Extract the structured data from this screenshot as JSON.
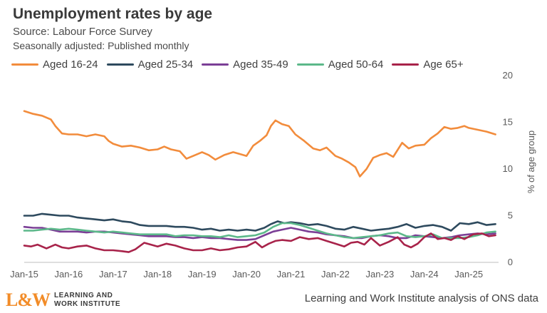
{
  "title": "Unemployment rates by age",
  "subtitle1": "Source: Labour Force Survey",
  "subtitle2": "Seasonally adjusted: Published monthly",
  "footer": {
    "logo_mark": "L&W",
    "logo_line1": "LEARNING AND",
    "logo_line2": "WORK INSTITUTE",
    "note": "Learning and Work Institute analysis of ONS data"
  },
  "chart_data": {
    "type": "line",
    "ylabel": "% of age group",
    "ylim": [
      0,
      20
    ],
    "yticks": [
      0,
      5,
      10,
      15,
      20
    ],
    "xlim": [
      2015.0,
      2025.67
    ],
    "xticks": [
      {
        "label": "Jan-15",
        "x": 2015.0
      },
      {
        "label": "Jan-16",
        "x": 2016.0
      },
      {
        "label": "Jan-17",
        "x": 2017.0
      },
      {
        "label": "Jan-18",
        "x": 2018.0
      },
      {
        "label": "Jan-19",
        "x": 2019.0
      },
      {
        "label": "Jan-20",
        "x": 2020.0
      },
      {
        "label": "Jan-21",
        "x": 2021.0
      },
      {
        "label": "Jan-22",
        "x": 2022.0
      },
      {
        "label": "Jan-23",
        "x": 2023.0
      },
      {
        "label": "Jan-24",
        "x": 2024.0
      },
      {
        "label": "Jan-25",
        "x": 2025.0
      }
    ],
    "legend_position": "top",
    "grid": false,
    "series": [
      {
        "name": "Aged 16-24",
        "color": "#f28c3c",
        "points": [
          [
            2015.0,
            16.2
          ],
          [
            2015.2,
            15.9
          ],
          [
            2015.4,
            15.7
          ],
          [
            2015.6,
            15.3
          ],
          [
            2015.7,
            14.6
          ],
          [
            2015.85,
            13.8
          ],
          [
            2016.0,
            13.7
          ],
          [
            2016.2,
            13.7
          ],
          [
            2016.4,
            13.5
          ],
          [
            2016.6,
            13.7
          ],
          [
            2016.8,
            13.5
          ],
          [
            2016.9,
            13.0
          ],
          [
            2017.0,
            12.7
          ],
          [
            2017.2,
            12.4
          ],
          [
            2017.4,
            12.5
          ],
          [
            2017.6,
            12.3
          ],
          [
            2017.8,
            12.0
          ],
          [
            2018.0,
            12.1
          ],
          [
            2018.15,
            12.4
          ],
          [
            2018.3,
            12.1
          ],
          [
            2018.5,
            11.9
          ],
          [
            2018.65,
            11.1
          ],
          [
            2018.8,
            11.4
          ],
          [
            2019.0,
            11.8
          ],
          [
            2019.15,
            11.5
          ],
          [
            2019.3,
            11.0
          ],
          [
            2019.5,
            11.5
          ],
          [
            2019.7,
            11.8
          ],
          [
            2019.85,
            11.6
          ],
          [
            2020.0,
            11.4
          ],
          [
            2020.15,
            12.5
          ],
          [
            2020.3,
            13.0
          ],
          [
            2020.45,
            13.6
          ],
          [
            2020.55,
            14.6
          ],
          [
            2020.65,
            15.2
          ],
          [
            2020.8,
            14.8
          ],
          [
            2020.95,
            14.6
          ],
          [
            2021.1,
            13.7
          ],
          [
            2021.3,
            13.0
          ],
          [
            2021.5,
            12.2
          ],
          [
            2021.65,
            12.0
          ],
          [
            2021.8,
            12.3
          ],
          [
            2022.0,
            11.4
          ],
          [
            2022.15,
            11.1
          ],
          [
            2022.3,
            10.7
          ],
          [
            2022.45,
            10.2
          ],
          [
            2022.55,
            9.2
          ],
          [
            2022.7,
            10.0
          ],
          [
            2022.85,
            11.2
          ],
          [
            2023.0,
            11.5
          ],
          [
            2023.15,
            11.7
          ],
          [
            2023.3,
            11.3
          ],
          [
            2023.5,
            12.8
          ],
          [
            2023.65,
            12.2
          ],
          [
            2023.8,
            12.5
          ],
          [
            2024.0,
            12.6
          ],
          [
            2024.15,
            13.3
          ],
          [
            2024.3,
            13.8
          ],
          [
            2024.45,
            14.5
          ],
          [
            2024.6,
            14.3
          ],
          [
            2024.75,
            14.4
          ],
          [
            2024.9,
            14.6
          ],
          [
            2025.0,
            14.4
          ],
          [
            2025.2,
            14.2
          ],
          [
            2025.4,
            14.0
          ],
          [
            2025.6,
            13.7
          ]
        ]
      },
      {
        "name": "Aged 25-34",
        "color": "#2e4a5e",
        "points": [
          [
            2015.0,
            5.0
          ],
          [
            2015.2,
            5.0
          ],
          [
            2015.4,
            5.2
          ],
          [
            2015.6,
            5.1
          ],
          [
            2015.8,
            5.0
          ],
          [
            2016.0,
            5.0
          ],
          [
            2016.2,
            4.8
          ],
          [
            2016.4,
            4.7
          ],
          [
            2016.6,
            4.6
          ],
          [
            2016.8,
            4.5
          ],
          [
            2017.0,
            4.6
          ],
          [
            2017.2,
            4.4
          ],
          [
            2017.4,
            4.3
          ],
          [
            2017.6,
            4.0
          ],
          [
            2017.8,
            3.9
          ],
          [
            2018.0,
            3.9
          ],
          [
            2018.2,
            3.9
          ],
          [
            2018.4,
            3.8
          ],
          [
            2018.6,
            3.8
          ],
          [
            2018.8,
            3.7
          ],
          [
            2019.0,
            3.5
          ],
          [
            2019.2,
            3.6
          ],
          [
            2019.4,
            3.4
          ],
          [
            2019.6,
            3.5
          ],
          [
            2019.8,
            3.4
          ],
          [
            2020.0,
            3.5
          ],
          [
            2020.2,
            3.4
          ],
          [
            2020.4,
            3.7
          ],
          [
            2020.55,
            4.1
          ],
          [
            2020.7,
            4.4
          ],
          [
            2020.85,
            4.2
          ],
          [
            2021.0,
            4.3
          ],
          [
            2021.2,
            4.2
          ],
          [
            2021.4,
            4.0
          ],
          [
            2021.6,
            4.1
          ],
          [
            2021.8,
            3.9
          ],
          [
            2022.0,
            3.6
          ],
          [
            2022.2,
            3.5
          ],
          [
            2022.4,
            3.8
          ],
          [
            2022.6,
            3.6
          ],
          [
            2022.8,
            3.4
          ],
          [
            2023.0,
            3.5
          ],
          [
            2023.2,
            3.6
          ],
          [
            2023.4,
            3.8
          ],
          [
            2023.6,
            4.1
          ],
          [
            2023.8,
            3.7
          ],
          [
            2024.0,
            3.9
          ],
          [
            2024.2,
            4.0
          ],
          [
            2024.4,
            3.8
          ],
          [
            2024.6,
            3.4
          ],
          [
            2024.8,
            4.2
          ],
          [
            2025.0,
            4.1
          ],
          [
            2025.2,
            4.3
          ],
          [
            2025.4,
            4.0
          ],
          [
            2025.6,
            4.1
          ]
        ]
      },
      {
        "name": "Aged 35-49",
        "color": "#7b3f96",
        "points": [
          [
            2015.0,
            3.8
          ],
          [
            2015.2,
            3.7
          ],
          [
            2015.4,
            3.7
          ],
          [
            2015.6,
            3.5
          ],
          [
            2015.8,
            3.3
          ],
          [
            2016.0,
            3.3
          ],
          [
            2016.2,
            3.3
          ],
          [
            2016.4,
            3.2
          ],
          [
            2016.6,
            3.3
          ],
          [
            2016.8,
            3.3
          ],
          [
            2017.0,
            3.2
          ],
          [
            2017.2,
            3.1
          ],
          [
            2017.4,
            3.0
          ],
          [
            2017.6,
            2.9
          ],
          [
            2017.8,
            2.8
          ],
          [
            2018.0,
            2.8
          ],
          [
            2018.2,
            2.8
          ],
          [
            2018.4,
            2.7
          ],
          [
            2018.6,
            2.7
          ],
          [
            2018.8,
            2.6
          ],
          [
            2019.0,
            2.7
          ],
          [
            2019.2,
            2.6
          ],
          [
            2019.4,
            2.6
          ],
          [
            2019.6,
            2.5
          ],
          [
            2019.8,
            2.4
          ],
          [
            2020.0,
            2.4
          ],
          [
            2020.2,
            2.5
          ],
          [
            2020.4,
            2.9
          ],
          [
            2020.6,
            3.3
          ],
          [
            2020.8,
            3.5
          ],
          [
            2021.0,
            3.7
          ],
          [
            2021.2,
            3.5
          ],
          [
            2021.4,
            3.3
          ],
          [
            2021.6,
            3.2
          ],
          [
            2021.8,
            3.0
          ],
          [
            2022.0,
            2.9
          ],
          [
            2022.2,
            2.8
          ],
          [
            2022.4,
            2.6
          ],
          [
            2022.6,
            2.6
          ],
          [
            2022.8,
            2.8
          ],
          [
            2023.0,
            2.9
          ],
          [
            2023.2,
            2.8
          ],
          [
            2023.4,
            2.6
          ],
          [
            2023.6,
            2.6
          ],
          [
            2023.8,
            2.9
          ],
          [
            2024.0,
            2.8
          ],
          [
            2024.2,
            2.7
          ],
          [
            2024.4,
            2.6
          ],
          [
            2024.6,
            2.7
          ],
          [
            2024.8,
            2.9
          ],
          [
            2025.0,
            3.0
          ],
          [
            2025.2,
            3.1
          ],
          [
            2025.4,
            3.0
          ],
          [
            2025.6,
            3.1
          ]
        ]
      },
      {
        "name": "Aged 50-64",
        "color": "#5cb88a",
        "points": [
          [
            2015.0,
            3.4
          ],
          [
            2015.2,
            3.4
          ],
          [
            2015.4,
            3.5
          ],
          [
            2015.6,
            3.6
          ],
          [
            2015.8,
            3.5
          ],
          [
            2016.0,
            3.6
          ],
          [
            2016.2,
            3.5
          ],
          [
            2016.4,
            3.4
          ],
          [
            2016.6,
            3.3
          ],
          [
            2016.8,
            3.2
          ],
          [
            2017.0,
            3.3
          ],
          [
            2017.2,
            3.2
          ],
          [
            2017.4,
            3.1
          ],
          [
            2017.6,
            3.0
          ],
          [
            2017.8,
            3.0
          ],
          [
            2018.0,
            3.0
          ],
          [
            2018.2,
            3.0
          ],
          [
            2018.4,
            2.8
          ],
          [
            2018.6,
            2.9
          ],
          [
            2018.8,
            2.9
          ],
          [
            2019.0,
            2.8
          ],
          [
            2019.2,
            2.8
          ],
          [
            2019.4,
            2.7
          ],
          [
            2019.6,
            2.9
          ],
          [
            2019.8,
            2.7
          ],
          [
            2020.0,
            2.8
          ],
          [
            2020.2,
            2.9
          ],
          [
            2020.4,
            3.2
          ],
          [
            2020.6,
            3.8
          ],
          [
            2020.8,
            4.2
          ],
          [
            2021.0,
            4.2
          ],
          [
            2021.2,
            4.0
          ],
          [
            2021.4,
            3.7
          ],
          [
            2021.6,
            3.4
          ],
          [
            2021.8,
            3.1
          ],
          [
            2022.0,
            2.9
          ],
          [
            2022.2,
            2.7
          ],
          [
            2022.4,
            2.6
          ],
          [
            2022.6,
            2.7
          ],
          [
            2022.8,
            2.8
          ],
          [
            2023.0,
            2.9
          ],
          [
            2023.2,
            3.1
          ],
          [
            2023.4,
            3.2
          ],
          [
            2023.6,
            2.8
          ],
          [
            2023.8,
            2.7
          ],
          [
            2024.0,
            2.8
          ],
          [
            2024.2,
            3.0
          ],
          [
            2024.4,
            2.6
          ],
          [
            2024.6,
            2.6
          ],
          [
            2024.8,
            2.6
          ],
          [
            2025.0,
            2.7
          ],
          [
            2025.2,
            2.9
          ],
          [
            2025.4,
            3.2
          ],
          [
            2025.6,
            3.3
          ]
        ]
      },
      {
        "name": "Age 65+",
        "color": "#a8234a",
        "points": [
          [
            2015.0,
            1.8
          ],
          [
            2015.15,
            1.7
          ],
          [
            2015.3,
            1.9
          ],
          [
            2015.5,
            1.5
          ],
          [
            2015.7,
            1.9
          ],
          [
            2015.85,
            1.6
          ],
          [
            2016.0,
            1.5
          ],
          [
            2016.2,
            1.7
          ],
          [
            2016.4,
            1.8
          ],
          [
            2016.6,
            1.5
          ],
          [
            2016.8,
            1.3
          ],
          [
            2017.0,
            1.3
          ],
          [
            2017.2,
            1.2
          ],
          [
            2017.35,
            1.1
          ],
          [
            2017.5,
            1.4
          ],
          [
            2017.7,
            2.1
          ],
          [
            2017.85,
            1.9
          ],
          [
            2018.0,
            1.7
          ],
          [
            2018.2,
            2.0
          ],
          [
            2018.4,
            1.8
          ],
          [
            2018.6,
            1.5
          ],
          [
            2018.8,
            1.3
          ],
          [
            2019.0,
            1.3
          ],
          [
            2019.2,
            1.5
          ],
          [
            2019.4,
            1.3
          ],
          [
            2019.6,
            1.4
          ],
          [
            2019.8,
            1.6
          ],
          [
            2020.0,
            1.7
          ],
          [
            2020.2,
            2.2
          ],
          [
            2020.35,
            1.6
          ],
          [
            2020.5,
            2.0
          ],
          [
            2020.65,
            2.3
          ],
          [
            2020.8,
            2.4
          ],
          [
            2021.0,
            2.3
          ],
          [
            2021.2,
            2.7
          ],
          [
            2021.4,
            2.5
          ],
          [
            2021.6,
            2.6
          ],
          [
            2021.8,
            2.3
          ],
          [
            2022.0,
            2.0
          ],
          [
            2022.2,
            1.7
          ],
          [
            2022.35,
            2.1
          ],
          [
            2022.5,
            2.2
          ],
          [
            2022.65,
            1.9
          ],
          [
            2022.8,
            2.6
          ],
          [
            2023.0,
            1.8
          ],
          [
            2023.2,
            2.2
          ],
          [
            2023.4,
            2.7
          ],
          [
            2023.55,
            1.9
          ],
          [
            2023.7,
            1.6
          ],
          [
            2023.85,
            2.0
          ],
          [
            2024.0,
            2.7
          ],
          [
            2024.15,
            3.1
          ],
          [
            2024.3,
            2.5
          ],
          [
            2024.45,
            2.6
          ],
          [
            2024.6,
            2.4
          ],
          [
            2024.75,
            2.8
          ],
          [
            2024.9,
            2.5
          ],
          [
            2025.1,
            3.0
          ],
          [
            2025.3,
            3.1
          ],
          [
            2025.45,
            2.8
          ],
          [
            2025.6,
            2.9
          ]
        ]
      }
    ]
  }
}
